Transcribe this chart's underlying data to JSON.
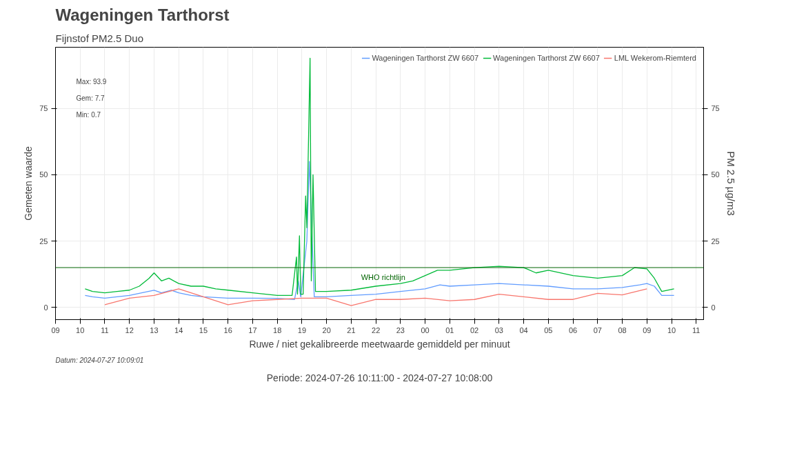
{
  "chart_data": {
    "type": "line",
    "title": "Wageningen Tarthorst",
    "subtitle": "Fijnstof PM2.5 Duo",
    "xlabel": "Ruwe / niet gekalibreerde meetwaarde gemiddeld per minuut",
    "ylabel": "Gemeten waarde",
    "y2label": "PM 2.5 µg/m3",
    "annotations": [
      "Max: 93.9",
      "Gem: 7.7",
      "Min: 0.7",
      "Periode: 2024-07-26 10:11:00 - 2024-07-27 10:08:00",
      "Datum: 2024-07-27 10:09:01"
    ],
    "series": [
      {
        "name": "Wageningen Tarthorst ZW 6607",
        "color": "#619cff",
        "x": [
          10.2,
          10.5,
          11,
          11.5,
          12,
          12.5,
          13,
          13.3,
          13.7,
          14,
          14.5,
          15,
          16,
          17,
          18,
          18.7,
          18.85,
          18.95,
          19.2,
          19.3,
          19.4,
          19.5,
          20,
          21,
          22,
          23,
          24,
          24.6,
          25,
          26,
          27,
          28,
          29,
          30,
          31,
          32,
          32.7,
          33,
          33.3,
          33.6,
          34.1
        ],
        "values": [
          4.5,
          4,
          3.5,
          4,
          4.5,
          5.5,
          6.5,
          5.5,
          6.5,
          5.5,
          4.5,
          4,
          3.5,
          3.5,
          3.4,
          3,
          10,
          4,
          25,
          55,
          30,
          4,
          4,
          4.5,
          5,
          6,
          7,
          8.5,
          8,
          8.5,
          9,
          8.5,
          8,
          7,
          7,
          7.5,
          8.5,
          9,
          8,
          4.5,
          4.5
        ]
      },
      {
        "name": "Wageningen Tarthorst ZW 6607",
        "color": "#00ba38",
        "x": [
          10.2,
          10.5,
          11,
          11.5,
          12,
          12.4,
          12.8,
          13,
          13.3,
          13.6,
          14,
          14.5,
          15,
          15.5,
          16,
          17,
          18,
          18.6,
          18.78,
          18.82,
          18.9,
          18.95,
          19.05,
          19.15,
          19.2,
          19.33,
          19.38,
          19.45,
          19.55,
          20,
          21,
          22,
          23,
          23.5,
          24,
          24.5,
          25,
          26,
          27,
          28,
          28.5,
          29,
          30,
          31,
          32,
          32.5,
          33,
          33.3,
          33.6,
          34.1
        ],
        "values": [
          7,
          6,
          5.5,
          6,
          6.5,
          8,
          11,
          13,
          10,
          11,
          9,
          8,
          8,
          7,
          6.5,
          5.5,
          4.5,
          4.5,
          19,
          5,
          27,
          5,
          5,
          42,
          30,
          93.9,
          10,
          50,
          6,
          6,
          6.5,
          8,
          9,
          10,
          12,
          14,
          14,
          15,
          15.5,
          15,
          13,
          14,
          12,
          11,
          12,
          15,
          14.5,
          11,
          6,
          7
        ]
      },
      {
        "name": "LML Wekerom-Riemterd",
        "color": "#f8766d",
        "x": [
          11,
          12,
          13,
          14,
          15,
          16,
          17,
          18,
          19,
          20,
          21,
          22,
          23,
          24,
          25,
          26,
          27,
          28,
          29,
          30,
          31,
          32,
          33
        ],
        "values": [
          1,
          3.5,
          4.5,
          7,
          4,
          1,
          2.5,
          3,
          3.5,
          3.5,
          0.7,
          3,
          3,
          3.5,
          2.5,
          3,
          5,
          4,
          3,
          3,
          5.3,
          4.7,
          7
        ]
      }
    ],
    "xlim": [
      9,
      35.3
    ],
    "ylim": [
      -4.6,
      98
    ],
    "y2lim": [
      -4.6,
      98
    ],
    "xticks": [
      {
        "value": 9,
        "label": "09"
      },
      {
        "value": 10,
        "label": "10"
      },
      {
        "value": 11,
        "label": "11"
      },
      {
        "value": 12,
        "label": "12"
      },
      {
        "value": 13,
        "label": "13"
      },
      {
        "value": 14,
        "label": "14"
      },
      {
        "value": 15,
        "label": "15"
      },
      {
        "value": 16,
        "label": "16"
      },
      {
        "value": 17,
        "label": "17"
      },
      {
        "value": 18,
        "label": "18"
      },
      {
        "value": 19,
        "label": "19"
      },
      {
        "value": 20,
        "label": "20"
      },
      {
        "value": 21,
        "label": "21"
      },
      {
        "value": 22,
        "label": "22"
      },
      {
        "value": 23,
        "label": "23"
      },
      {
        "value": 24,
        "label": "00"
      },
      {
        "value": 25,
        "label": "01"
      },
      {
        "value": 26,
        "label": "02"
      },
      {
        "value": 27,
        "label": "03"
      },
      {
        "value": 28,
        "label": "04"
      },
      {
        "value": 29,
        "label": "05"
      },
      {
        "value": 30,
        "label": "06"
      },
      {
        "value": 31,
        "label": "07"
      },
      {
        "value": 32,
        "label": "08"
      },
      {
        "value": 33,
        "label": "09"
      },
      {
        "value": 34,
        "label": "10"
      },
      {
        "value": 35,
        "label": "11"
      }
    ],
    "yticks": [
      0,
      25,
      50,
      75
    ],
    "y2ticks": [
      0,
      25,
      50,
      75
    ],
    "ref_lines": [
      {
        "axis": "y",
        "value": 15,
        "label": "WHO richtlijn",
        "color": "#006400"
      }
    ],
    "grid": true,
    "legend": "top right"
  }
}
